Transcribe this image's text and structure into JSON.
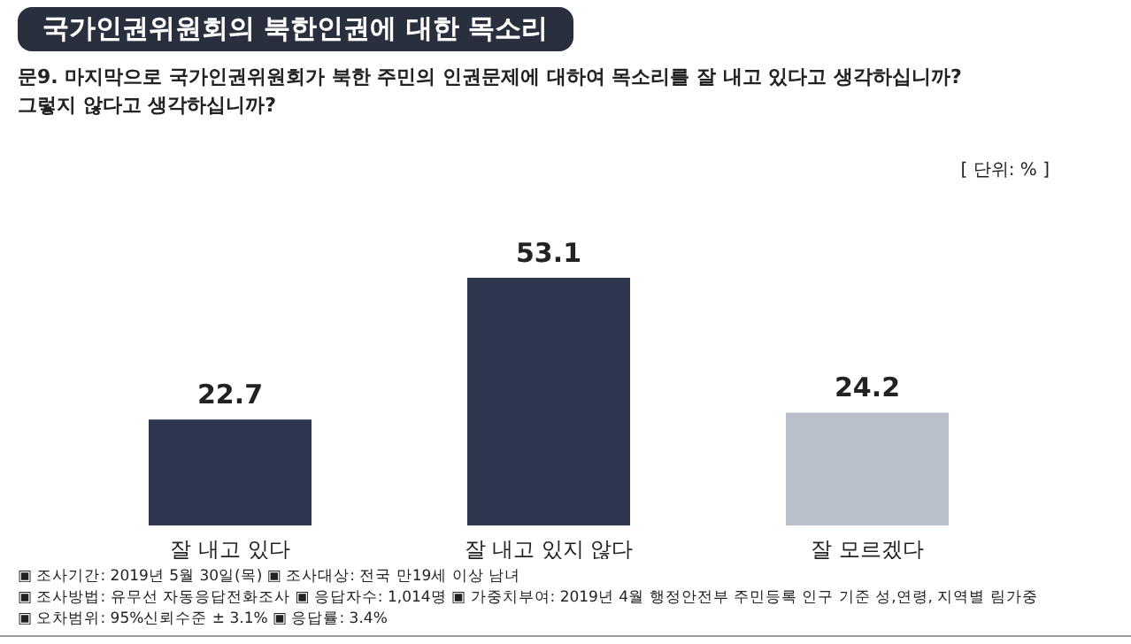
{
  "chart_data": {
    "type": "bar",
    "title": "국가인권위원회의 북한인권에 대한 목소리",
    "subtitle": "문9. 마지막으로 국가인권위원회가 북한 주민의 인권문제에 대하여 목소리를 잘 내고 있다고 생각하십니까?\n그렇지 않다고 생각하십니까?",
    "categories": [
      "잘 내고 있다",
      "잘 내고 있지 않다",
      "잘 모르겠다"
    ],
    "values": [
      22.7,
      53.1,
      24.2
    ],
    "colors": [
      "#2f3750",
      "#2f3750",
      "#b9c0cb"
    ],
    "data_labels": true,
    "annotations": [
      "[ 단위: % ]",
      "▣ 조사기간: 2019년 5월 30일(목) ▣ 조사대상: 전국 만19세 이상 남녀",
      "▣ 조사방법: 유무선 자동응답전화조사 ▣ 응답자수: 1,014명 ▣ 가중치부여: 2019년 4월 행정안전부 주민등록 인구 기준 성,연령, 지역별 림가중",
      "▣ 오차범위: 95%신뢰수준 ± 3.1% ▣ 응답률: 3.4%"
    ]
  }
}
